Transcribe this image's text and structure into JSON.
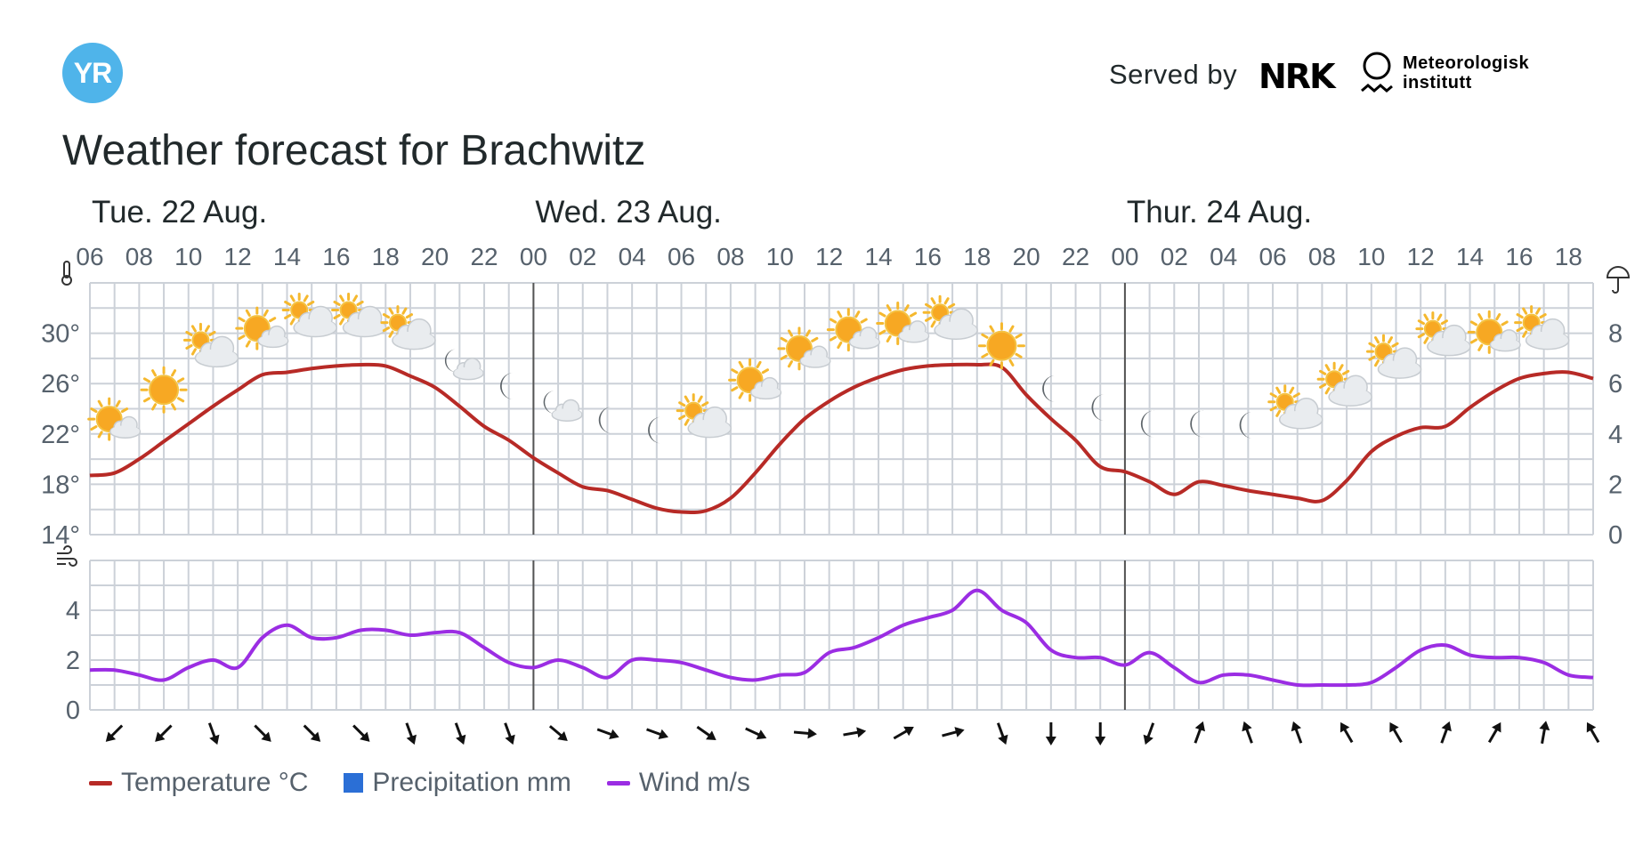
{
  "header": {
    "logo_text": "YR",
    "served_by": "Served by",
    "nrk_text": "NRK",
    "met_line1": "Meteorologisk",
    "met_line2": "institutt",
    "title": "Weather forecast for Brachwitz"
  },
  "colors": {
    "temperature": "#b72a26",
    "precipitation": "#2b6fd6",
    "wind": "#9b2de3",
    "grid": "#ccd1d8",
    "day_divider": "#555555"
  },
  "chart_data": {
    "type": "line",
    "days": [
      {
        "label": "Tue. 22 Aug.",
        "start_hour": 6
      },
      {
        "label": "Wed. 23 Aug.",
        "start_hour": 24
      },
      {
        "label": "Thur. 24 Aug.",
        "start_hour": 48
      }
    ],
    "hour_ticks": [
      "06",
      "08",
      "10",
      "12",
      "14",
      "16",
      "18",
      "20",
      "22",
      "00",
      "02",
      "04",
      "06",
      "08",
      "10",
      "12",
      "14",
      "16",
      "18",
      "20",
      "22",
      "00",
      "02",
      "04",
      "06",
      "08",
      "10",
      "12",
      "14",
      "16",
      "18"
    ],
    "x_range_hours": [
      6,
      67
    ],
    "temperature": {
      "name": "Temperature °C",
      "yticks": [
        "30°",
        "26°",
        "22°",
        "18°",
        "14°"
      ],
      "ylim": [
        14,
        34
      ],
      "x_hours": [
        6,
        7,
        8,
        9,
        10,
        11,
        12,
        13,
        14,
        15,
        16,
        17,
        18,
        19,
        20,
        21,
        22,
        23,
        24,
        25,
        26,
        27,
        28,
        29,
        30,
        31,
        32,
        33,
        34,
        35,
        36,
        37,
        38,
        39,
        40,
        41,
        42,
        43,
        44,
        45,
        46,
        47,
        48,
        49,
        50,
        51,
        52,
        53,
        54,
        55,
        56,
        57,
        58,
        59,
        60,
        61,
        62,
        63,
        64,
        65,
        66,
        67
      ],
      "values": [
        18.7,
        18.9,
        20,
        21.4,
        22.8,
        24.2,
        25.5,
        26.7,
        26.9,
        27.2,
        27.4,
        27.5,
        27.4,
        26.6,
        25.7,
        24.2,
        22.6,
        21.5,
        20.1,
        18.9,
        17.8,
        17.5,
        16.8,
        16.1,
        15.8,
        15.9,
        16.9,
        18.9,
        21.2,
        23.2,
        24.6,
        25.7,
        26.5,
        27.1,
        27.4,
        27.5,
        27.5,
        27.3,
        25.1,
        23.2,
        21.5,
        19.4,
        19.0,
        18.2,
        17.2,
        18.2,
        17.9,
        17.5,
        17.2,
        16.9,
        16.7,
        18.3,
        20.6,
        21.8,
        22.5,
        22.6,
        24.1,
        25.4,
        26.4,
        26.8,
        26.9,
        26.4
      ]
    },
    "precipitation": {
      "name": "Precipitation mm",
      "yticks": [
        "8",
        "6",
        "4",
        "2",
        "0"
      ],
      "ylim": [
        0,
        10
      ],
      "values": []
    },
    "wind": {
      "name": "Wind m/s",
      "yticks": [
        "4",
        "2",
        "0"
      ],
      "ylim": [
        0,
        6
      ],
      "x_hours": [
        6,
        7,
        8,
        9,
        10,
        11,
        12,
        13,
        14,
        15,
        16,
        17,
        18,
        19,
        20,
        21,
        22,
        23,
        24,
        25,
        26,
        27,
        28,
        29,
        30,
        31,
        32,
        33,
        34,
        35,
        36,
        37,
        38,
        39,
        40,
        41,
        42,
        43,
        44,
        45,
        46,
        47,
        48,
        49,
        50,
        51,
        52,
        53,
        54,
        55,
        56,
        57,
        58,
        59,
        60,
        61,
        62,
        63,
        64,
        65,
        66,
        67
      ],
      "values": [
        1.6,
        1.6,
        1.4,
        1.2,
        1.7,
        2.0,
        1.7,
        2.9,
        3.4,
        2.9,
        2.9,
        3.2,
        3.2,
        3.0,
        3.1,
        3.1,
        2.5,
        1.9,
        1.7,
        2.0,
        1.7,
        1.3,
        2.0,
        2.0,
        1.9,
        1.6,
        1.3,
        1.2,
        1.4,
        1.5,
        2.3,
        2.5,
        2.9,
        3.4,
        3.7,
        4.0,
        4.8,
        4.0,
        3.5,
        2.4,
        2.1,
        2.1,
        1.8,
        2.3,
        1.7,
        1.1,
        1.4,
        1.4,
        1.2,
        1.0,
        1.0,
        1.0,
        1.1,
        1.7,
        2.4,
        2.6,
        2.2,
        2.1,
        2.1,
        1.9,
        1.4,
        1.3
      ]
    },
    "wind_arrows": {
      "hours": [
        7,
        9,
        11,
        13,
        15,
        17,
        19,
        21,
        23,
        25,
        27,
        29,
        31,
        33,
        35,
        37,
        39,
        41,
        43,
        45,
        47,
        49,
        51,
        53,
        55,
        57,
        59,
        61,
        63,
        65,
        67
      ],
      "rotation_deg": [
        225,
        225,
        160,
        135,
        135,
        135,
        160,
        160,
        160,
        130,
        110,
        110,
        125,
        115,
        95,
        80,
        60,
        75,
        160,
        180,
        180,
        200,
        20,
        340,
        340,
        330,
        330,
        20,
        30,
        10,
        330
      ]
    },
    "weather_symbols": {
      "hours": [
        7,
        9,
        11,
        13,
        15,
        17,
        19,
        21,
        23,
        25,
        27,
        29,
        31,
        33,
        35,
        37,
        39,
        41,
        43,
        45,
        47,
        49,
        51,
        53,
        55,
        57,
        59,
        61,
        63,
        65,
        67
      ],
      "icons": [
        "partly-sunny-icon",
        "sun-icon",
        "cloudy-sun-icon",
        "partly-sunny-icon",
        "cloudy-sun-icon",
        "cloudy-sun-icon",
        "cloudy-sun-icon",
        "cloudy-moon-icon",
        "moon-icon",
        "cloudy-moon-icon",
        "moon-icon",
        "moon-icon",
        "cloudy-sun-icon",
        "partly-sunny-icon",
        "partly-sunny-icon",
        "partly-sunny-icon",
        "partly-sunny-icon",
        "cloudy-sun-icon",
        "sun-icon",
        "moon-icon",
        "moon-icon",
        "moon-icon",
        "moon-icon",
        "moon-icon",
        "cloudy-sun-icon",
        "cloudy-sun-icon",
        "cloudy-sun-icon",
        "cloudy-sun-icon",
        "partly-sunny-icon",
        "cloudy-sun-icon",
        ""
      ],
      "temperature_anchor": [
        22.9,
        25.5,
        28.6,
        30.1,
        31.0,
        31.0,
        30.0,
        27.4,
        25.8,
        24.1,
        23.1,
        22.3,
        23.0,
        26.0,
        28.5,
        30.0,
        30.5,
        30.8,
        29.0,
        25.6,
        24.1,
        22.8,
        22.8,
        22.7,
        23.7,
        25.5,
        27.7,
        29.5,
        29.8,
        30.0,
        30.0
      ]
    },
    "legend": [
      "Temperature °C",
      "Precipitation mm",
      "Wind m/s"
    ],
    "legend_position": "bottom-left",
    "grid": true
  }
}
